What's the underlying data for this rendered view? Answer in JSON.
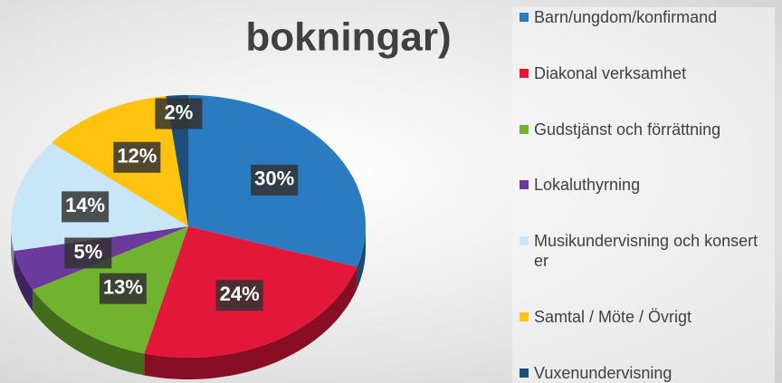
{
  "chart_data": {
    "type": "pie",
    "title": "bokningar)",
    "categories": [
      "Barn/ungdom/konfirmand",
      "Diakonal verksamhet",
      "Gudstjänst och förrättning",
      "Lokaluthyrning",
      "Musikundervisning och konserter",
      "Samtal / Möte / Övrigt",
      "Vuxenundervisning"
    ],
    "values": [
      30,
      24,
      13,
      5,
      14,
      12,
      2
    ],
    "value_labels": [
      "30%",
      "24%",
      "13%",
      "5%",
      "14%",
      "12%",
      "2%"
    ],
    "colors": [
      "#2b7bc0",
      "#e2173a",
      "#6fb32e",
      "#6a3a9c",
      "#c8e6f8",
      "#ffc20e",
      "#1c4f7a"
    ],
    "legend": "right"
  }
}
